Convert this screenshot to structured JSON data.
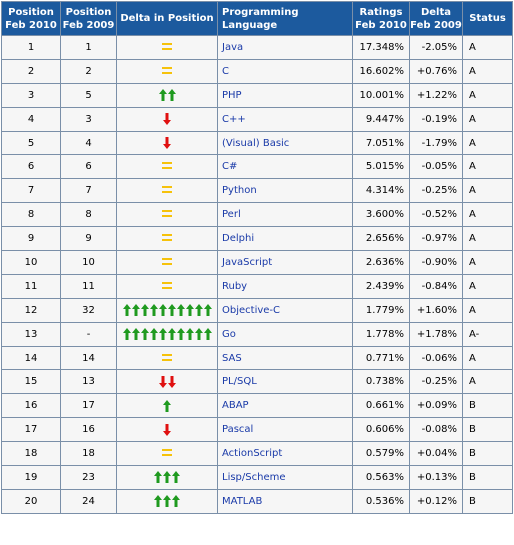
{
  "headers": {
    "pos2010": "Position Feb 2010",
    "pos2009": "Position Feb 2009",
    "delta_pos": "Delta in Position",
    "language": "Programming Language",
    "ratings": "Ratings Feb 2010",
    "delta_feb": "Delta Feb 2009",
    "status": "Status"
  },
  "colors": {
    "header_bg": "#1c5a9e",
    "up_arrow": "#1f9a1f",
    "down_arrow": "#e01010",
    "equal": "#f6c20b",
    "language_link": "#1a3aa8"
  },
  "rows": [
    {
      "pos2010": "1",
      "pos2009": "1",
      "change": "equal",
      "arrows": 1,
      "language": "Java",
      "rating": "17.348%",
      "delta": "-2.05%",
      "status": "A"
    },
    {
      "pos2010": "2",
      "pos2009": "2",
      "change": "equal",
      "arrows": 1,
      "language": "C",
      "rating": "16.602%",
      "delta": "+0.76%",
      "status": "A"
    },
    {
      "pos2010": "3",
      "pos2009": "5",
      "change": "up",
      "arrows": 2,
      "language": "PHP",
      "rating": "10.001%",
      "delta": "+1.22%",
      "status": "A"
    },
    {
      "pos2010": "4",
      "pos2009": "3",
      "change": "down",
      "arrows": 1,
      "language": "C++",
      "rating": "9.447%",
      "delta": "-0.19%",
      "status": "A"
    },
    {
      "pos2010": "5",
      "pos2009": "4",
      "change": "down",
      "arrows": 1,
      "language": "(Visual) Basic",
      "rating": "7.051%",
      "delta": "-1.79%",
      "status": "A"
    },
    {
      "pos2010": "6",
      "pos2009": "6",
      "change": "equal",
      "arrows": 1,
      "language": "C#",
      "rating": "5.015%",
      "delta": "-0.05%",
      "status": "A"
    },
    {
      "pos2010": "7",
      "pos2009": "7",
      "change": "equal",
      "arrows": 1,
      "language": "Python",
      "rating": "4.314%",
      "delta": "-0.25%",
      "status": "A"
    },
    {
      "pos2010": "8",
      "pos2009": "8",
      "change": "equal",
      "arrows": 1,
      "language": "Perl",
      "rating": "3.600%",
      "delta": "-0.52%",
      "status": "A"
    },
    {
      "pos2010": "9",
      "pos2009": "9",
      "change": "equal",
      "arrows": 1,
      "language": "Delphi",
      "rating": "2.656%",
      "delta": "-0.97%",
      "status": "A"
    },
    {
      "pos2010": "10",
      "pos2009": "10",
      "change": "equal",
      "arrows": 1,
      "language": "JavaScript",
      "rating": "2.636%",
      "delta": "-0.90%",
      "status": "A"
    },
    {
      "pos2010": "11",
      "pos2009": "11",
      "change": "equal",
      "arrows": 1,
      "language": "Ruby",
      "rating": "2.439%",
      "delta": "-0.84%",
      "status": "A"
    },
    {
      "pos2010": "12",
      "pos2009": "32",
      "change": "up",
      "arrows": 10,
      "language": "Objective-C",
      "rating": "1.779%",
      "delta": "+1.60%",
      "status": "A"
    },
    {
      "pos2010": "13",
      "pos2009": "-",
      "change": "up",
      "arrows": 10,
      "language": "Go",
      "rating": "1.778%",
      "delta": "+1.78%",
      "status": "A-"
    },
    {
      "pos2010": "14",
      "pos2009": "14",
      "change": "equal",
      "arrows": 1,
      "language": "SAS",
      "rating": "0.771%",
      "delta": "-0.06%",
      "status": "A"
    },
    {
      "pos2010": "15",
      "pos2009": "13",
      "change": "down",
      "arrows": 2,
      "language": "PL/SQL",
      "rating": "0.738%",
      "delta": "-0.25%",
      "status": "A"
    },
    {
      "pos2010": "16",
      "pos2009": "17",
      "change": "up",
      "arrows": 1,
      "language": "ABAP",
      "rating": "0.661%",
      "delta": "+0.09%",
      "status": "B"
    },
    {
      "pos2010": "17",
      "pos2009": "16",
      "change": "down",
      "arrows": 1,
      "language": "Pascal",
      "rating": "0.606%",
      "delta": "-0.08%",
      "status": "B"
    },
    {
      "pos2010": "18",
      "pos2009": "18",
      "change": "equal",
      "arrows": 1,
      "language": "ActionScript",
      "rating": "0.579%",
      "delta": "+0.04%",
      "status": "B"
    },
    {
      "pos2010": "19",
      "pos2009": "23",
      "change": "up",
      "arrows": 3,
      "language": "Lisp/Scheme",
      "rating": "0.563%",
      "delta": "+0.13%",
      "status": "B"
    },
    {
      "pos2010": "20",
      "pos2009": "24",
      "change": "up",
      "arrows": 3,
      "language": "MATLAB",
      "rating": "0.536%",
      "delta": "+0.12%",
      "status": "B"
    }
  ]
}
